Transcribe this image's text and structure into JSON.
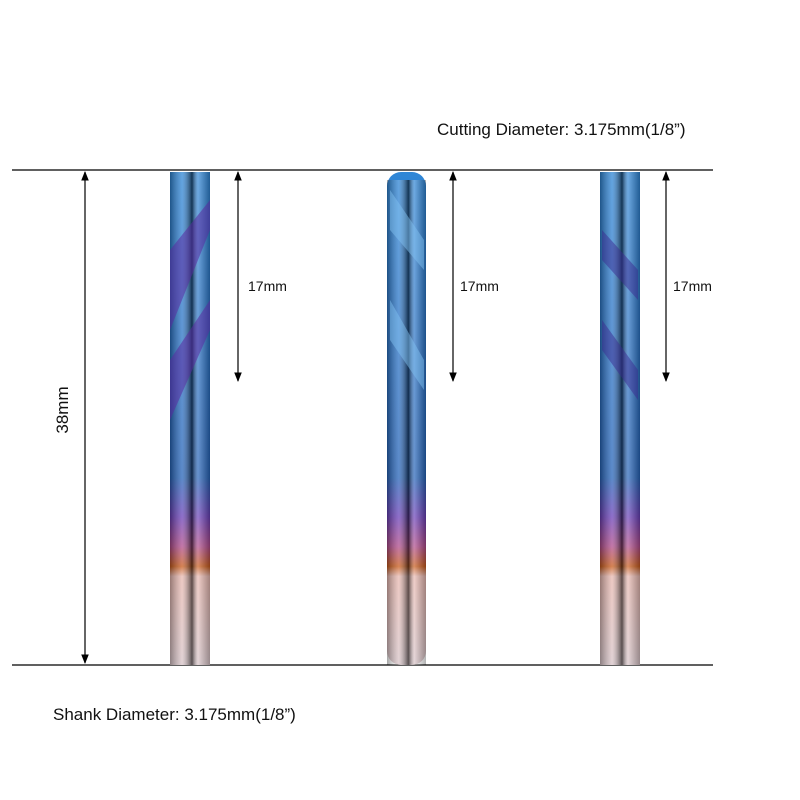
{
  "header": {
    "cutting_diameter": "Cutting Diameter: 3.175mm(1/8”)"
  },
  "dimensions": {
    "overall_length": "38mm",
    "flute_lengths": [
      "17mm",
      "17mm",
      "17mm"
    ]
  },
  "footer": {
    "shank_diameter": "Shank Diameter: 3.175mm(1/8”)"
  }
}
